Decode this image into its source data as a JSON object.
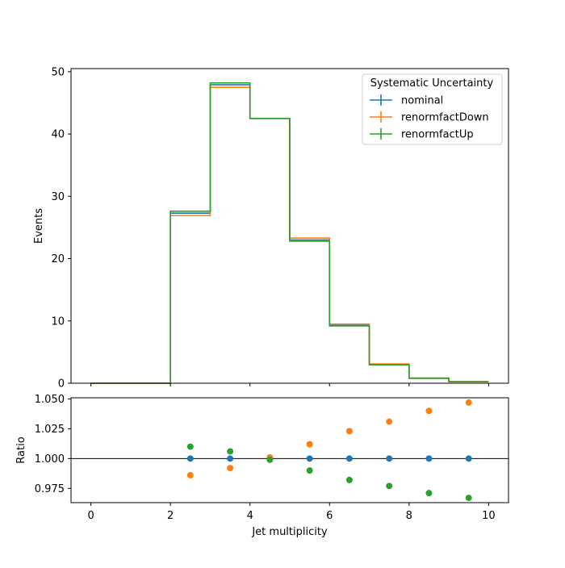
{
  "chart_data": [
    {
      "type": "line",
      "subtype": "step-histogram",
      "title": "",
      "xlabel": "",
      "ylabel": "Events",
      "xlim": [
        -0.5,
        10.5
      ],
      "ylim": [
        0,
        50.5
      ],
      "yticks": [
        0,
        10,
        20,
        30,
        40,
        50
      ],
      "ytick_labels": [
        "0",
        "10",
        "20",
        "30",
        "40",
        "50"
      ],
      "bin_edges": [
        0,
        1,
        2,
        3,
        4,
        5,
        6,
        7,
        8,
        9,
        10
      ],
      "series": [
        {
          "name": "nominal",
          "color": "#1f77b4",
          "values": [
            0,
            0,
            27.3,
            47.9,
            42.5,
            23.0,
            9.3,
            3.0,
            0.8,
            0.25
          ]
        },
        {
          "name": "renormfactDown",
          "color": "#ff7f0e",
          "values": [
            0,
            0,
            26.9,
            47.5,
            42.5,
            23.3,
            9.5,
            3.1,
            0.85,
            0.27
          ]
        },
        {
          "name": "renormfactUp",
          "color": "#2ca02c",
          "values": [
            0,
            0,
            27.6,
            48.2,
            42.5,
            22.8,
            9.2,
            2.95,
            0.78,
            0.24
          ]
        }
      ],
      "legend": {
        "title": "Systematic Uncertainty",
        "placement": "top-right"
      },
      "grid": false
    },
    {
      "type": "scatter",
      "title": "",
      "xlabel": "Jet multiplicity",
      "ylabel": "Ratio",
      "xlim": [
        -0.5,
        10.5
      ],
      "ylim": [
        0.963,
        1.051
      ],
      "xticks": [
        0,
        2,
        4,
        6,
        8,
        10
      ],
      "xtick_labels": [
        "0",
        "2",
        "4",
        "6",
        "8",
        "10"
      ],
      "yticks": [
        0.975,
        1.0,
        1.025,
        1.05
      ],
      "ytick_labels": [
        "0.975",
        "1.000",
        "1.025",
        "1.050"
      ],
      "reference_line": 1.0,
      "x": [
        2.5,
        3.5,
        4.5,
        5.5,
        6.5,
        7.5,
        8.5,
        9.5
      ],
      "series": [
        {
          "name": "nominal",
          "color": "#1f77b4",
          "values": [
            1.0,
            1.0,
            1.0,
            1.0,
            1.0,
            1.0,
            1.0,
            1.0
          ]
        },
        {
          "name": "renormfactDown",
          "color": "#ff7f0e",
          "values": [
            0.986,
            0.992,
            1.001,
            1.012,
            1.023,
            1.031,
            1.04,
            1.047
          ]
        },
        {
          "name": "renormfactUp",
          "color": "#2ca02c",
          "values": [
            1.01,
            1.006,
            0.999,
            0.99,
            0.982,
            0.977,
            0.971,
            0.967
          ]
        }
      ],
      "grid": false
    }
  ]
}
